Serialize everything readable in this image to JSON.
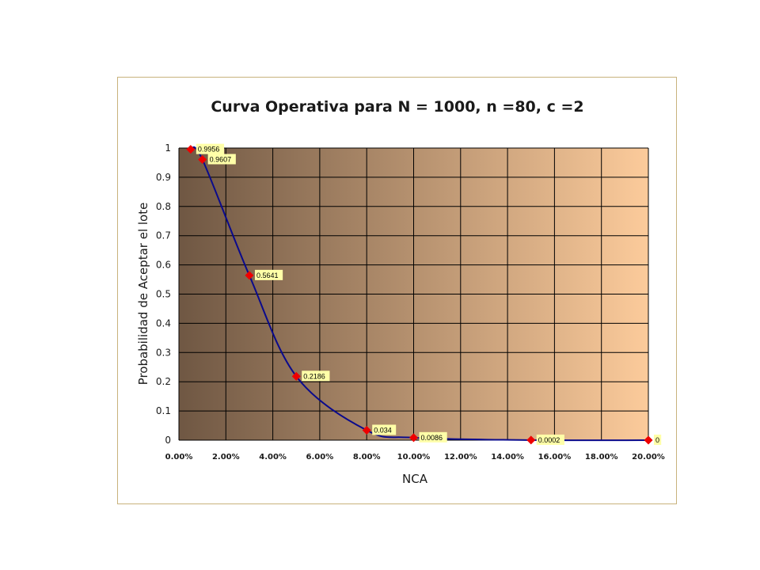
{
  "colors": {
    "plot_gradient_start": "#6f5743",
    "plot_gradient_end": "#fccb9b",
    "line": "#0a0a8c",
    "marker": "#ee0000",
    "label_bg": "#ffffa8",
    "grid": "#000000",
    "frame_border": "#c8b27c"
  },
  "chart_data": {
    "type": "line",
    "title": "Curva Operativa para N = 1000, n =80, c =2",
    "xlabel": "NCA",
    "ylabel": "Probabilidad de Aceptar el lote",
    "xlim": [
      0,
      0.2
    ],
    "ylim": [
      0,
      1
    ],
    "grid": true,
    "legend": "none",
    "x_tick_labels": [
      "0.00%",
      "2.00%",
      "4.00%",
      "6.00%",
      "8.00%",
      "10.00%",
      "12.00%",
      "14.00%",
      "16.00%",
      "18.00%",
      "20.00%"
    ],
    "y_tick_labels": [
      "0",
      "0.1",
      "0.2",
      "0.3",
      "0.4",
      "0.5",
      "0.6",
      "0.7",
      "0.8",
      "0.9",
      "1"
    ],
    "series": [
      {
        "x": [
          0.005,
          0.01,
          0.03,
          0.05,
          0.08,
          0.1,
          0.15,
          0.2
        ],
        "values": [
          0.9956,
          0.9607,
          0.5641,
          0.2186,
          0.034,
          0.0086,
          0.0002,
          0
        ],
        "data_labels": [
          "0.9956",
          "0.9607",
          "0.5641",
          "0.2186",
          "0.034",
          "0.0086",
          "0.0002",
          "0"
        ]
      }
    ]
  }
}
